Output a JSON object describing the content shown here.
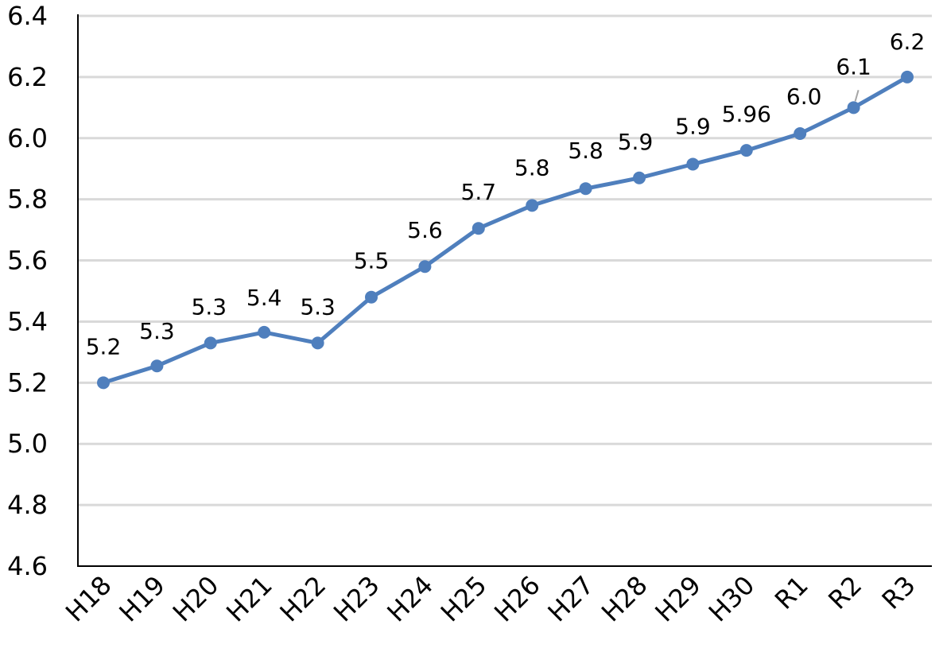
{
  "chart_data": {
    "type": "line",
    "title": "",
    "xlabel": "",
    "ylabel": "",
    "categories": [
      "H18",
      "H19",
      "H20",
      "H21",
      "H22",
      "H23",
      "H24",
      "H25",
      "H26",
      "H27",
      "H28",
      "H29",
      "H30",
      "R1",
      "R2",
      "R3"
    ],
    "series": [
      {
        "values": [
          5.2,
          5.255,
          5.33,
          5.365,
          5.33,
          5.48,
          5.58,
          5.705,
          5.78,
          5.835,
          5.87,
          5.915,
          5.96,
          6.015,
          6.1,
          6.2
        ],
        "labels": [
          "5.2",
          "5.3",
          "5.3",
          "5.4",
          "5.3",
          "5.5",
          "5.6",
          "5.7",
          "5.8",
          "5.8",
          "5.9",
          "5.9",
          "5.96",
          "6.0",
          "6.1",
          "6.2"
        ]
      }
    ],
    "ylim": [
      4.6,
      6.4
    ],
    "yticks": [
      "4.6",
      "4.8",
      "5.0",
      "5.2",
      "5.4",
      "5.6",
      "5.8",
      "6.0",
      "6.2",
      "6.4"
    ],
    "grid": true,
    "legend": "none",
    "colors": {
      "line": "#4f7fbd",
      "grid": "#d9d9d9",
      "axis": "#000000",
      "leader": "#a6a6a6"
    }
  }
}
